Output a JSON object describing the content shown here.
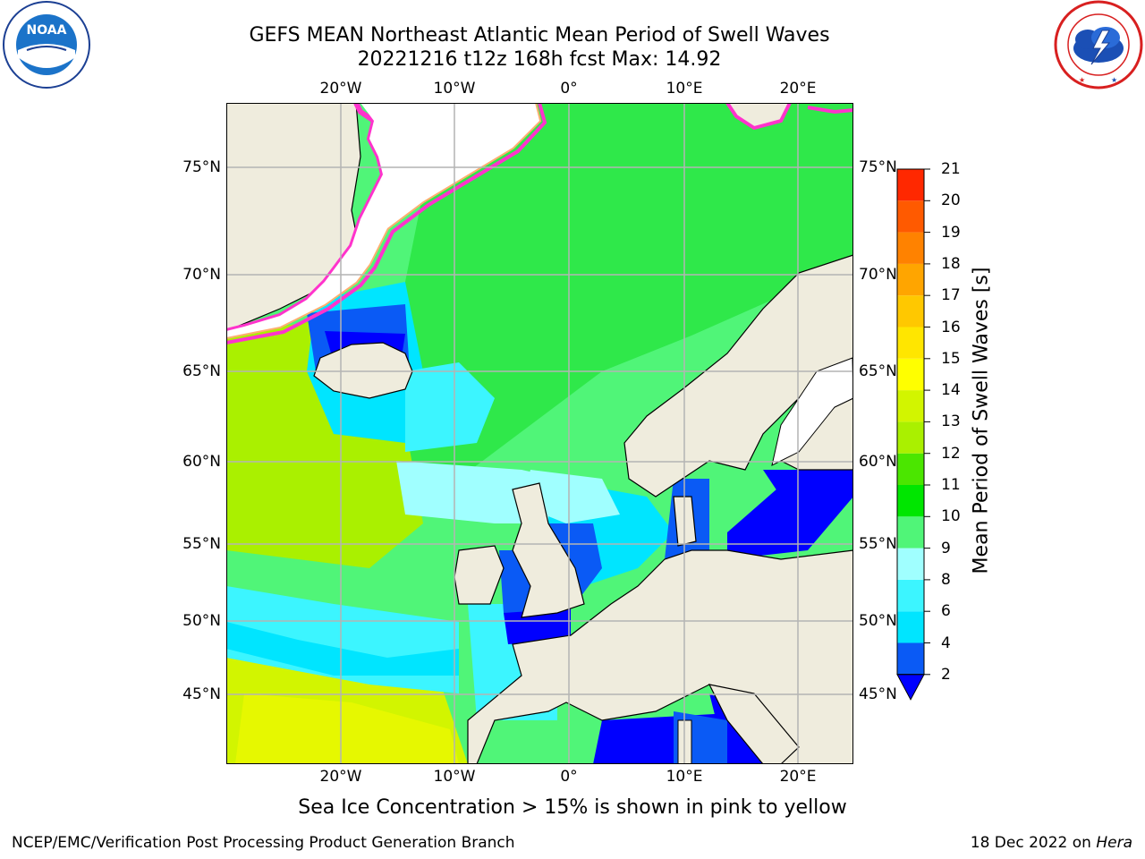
{
  "title": {
    "line1": "GEFS MEAN Northeast Atlantic Mean Period of Swell Waves",
    "line2": "20221216 t12z 168h fcst   Max: 14.92"
  },
  "logos": {
    "left": {
      "icon": "noaa-logo",
      "text": "NOAA",
      "ring": "NATIONAL OCEANIC AND ATMOSPHERIC ADMINISTRATION · U.S. DEPARTMENT OF COMMERCE"
    },
    "right": {
      "icon": "nws-logo",
      "ring": "NATIONAL WEATHER SERVICE"
    }
  },
  "map": {
    "lon_labels": [
      "20°W",
      "10°W",
      "0°",
      "10°E",
      "20°E"
    ],
    "lat_labels_left": [
      "75°N",
      "70°N",
      "65°N",
      "60°N",
      "55°N",
      "50°N",
      "45°N"
    ],
    "lat_labels_right": [
      "75°N",
      "70°N",
      "65°N",
      "60°N",
      "55°N",
      "50°N",
      "45°N"
    ],
    "land_color": "#efecdd",
    "grid_color": "#b4b4b4",
    "coastline_color": "#000000"
  },
  "colorbar": {
    "title": "Mean Period of Swell Waves [s]",
    "ticks": [
      "2",
      "4",
      "6",
      "8",
      "9",
      "10",
      "11",
      "12",
      "13",
      "14",
      "15",
      "16",
      "17",
      "18",
      "19",
      "20",
      "21"
    ],
    "colors": [
      "#0a5af5",
      "#00e5ff",
      "#3cf5ff",
      "#a0ffff",
      "#50f578",
      "#00e600",
      "#4be600",
      "#aaf000",
      "#d2f500",
      "#ffff00",
      "#ffe600",
      "#ffc800",
      "#ffa500",
      "#ff8200",
      "#ff5a00",
      "#ff2800"
    ],
    "extend_color": "#0000ff"
  },
  "caption": "Sea Ice Concentration > 15% is shown in pink to yellow",
  "footer": {
    "left": "NCEP/EMC/Verification Post Processing Product Generation Branch",
    "right_prefix": "18 Dec 2022 on ",
    "right_host": "Hera"
  }
}
